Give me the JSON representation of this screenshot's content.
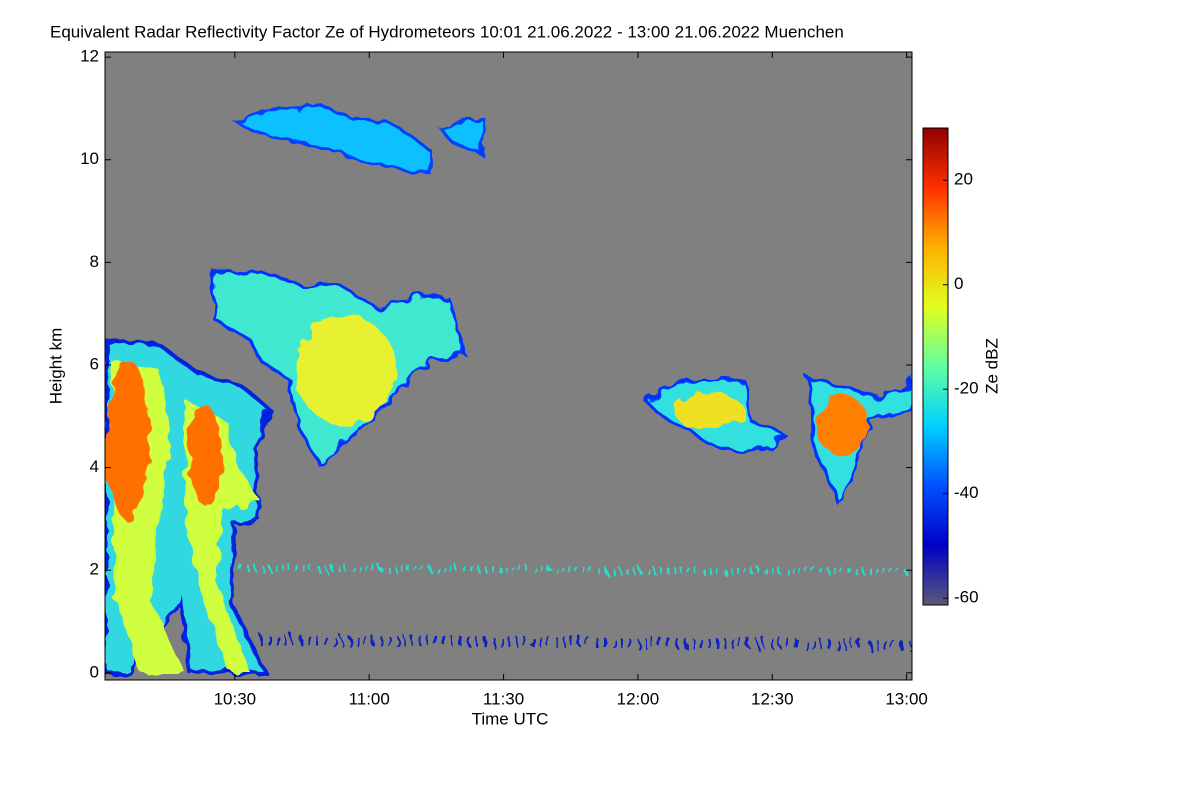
{
  "chart_data": {
    "type": "heatmap",
    "title": "Equivalent Radar Reflectivity Factor Ze of Hydrometeors   10:01 21.06.2022 - 13:00 21.06.2022 Muenchen",
    "xlabel": "Time UTC",
    "ylabel": "Height km",
    "colorbar_label": "Ze dBZ",
    "xlim": [
      10.0167,
      13.02
    ],
    "xticks": [
      {
        "value": 10.5,
        "label": "10:30"
      },
      {
        "value": 11,
        "label": "11:00"
      },
      {
        "value": 11.5,
        "label": "11:30"
      },
      {
        "value": 12,
        "label": "12:00"
      },
      {
        "value": 12.5,
        "label": "12:30"
      },
      {
        "value": 13,
        "label": "13:00"
      }
    ],
    "ylim": [
      -0.14,
      12.1
    ],
    "yticks": [
      0,
      2,
      4,
      6,
      8,
      10,
      12
    ],
    "clim": [
      -61.3,
      30
    ],
    "cticks": [
      20,
      0,
      -20,
      -40,
      -60
    ],
    "colormap": [
      "#5a5a78",
      "#0000c8",
      "#0050ff",
      "#00d0ff",
      "#60ffa0",
      "#e0ff20",
      "#ffb000",
      "#ff3000",
      "#900000"
    ],
    "background": "#808080"
  }
}
